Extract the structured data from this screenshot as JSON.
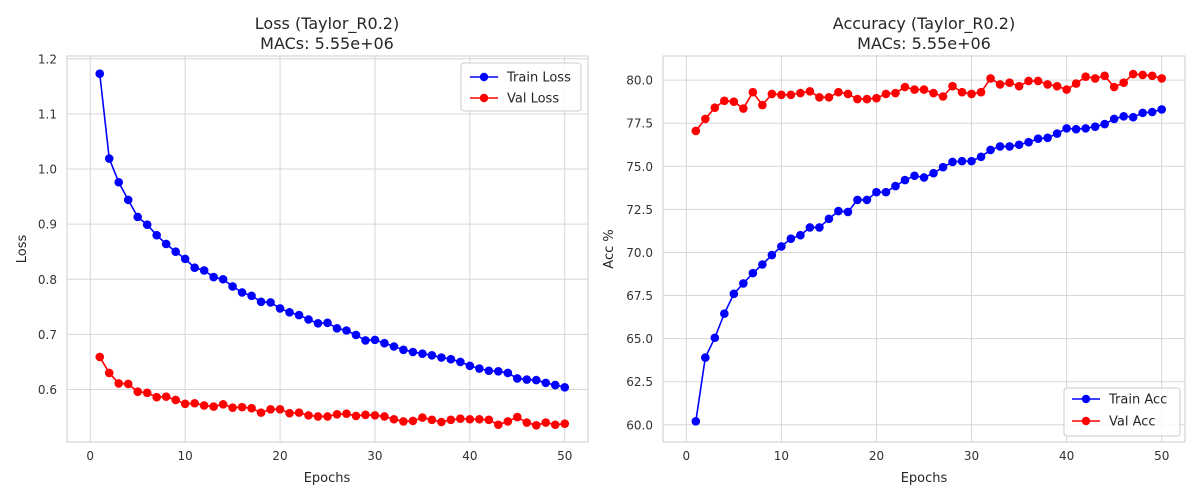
{
  "chart_data": [
    {
      "type": "line",
      "title": "Loss (Taylor_R0.2)",
      "subtitle": "MACs: 5.55e+06",
      "xlabel": "Epochs",
      "ylabel": "Loss",
      "xlim": [
        -2.45,
        52.45
      ],
      "ylim": [
        0.5047,
        1.2051
      ],
      "xticks": [
        0,
        10,
        20,
        30,
        40,
        50
      ],
      "xtick_labels": [
        "0",
        "10",
        "20",
        "30",
        "40",
        "50"
      ],
      "yticks": [
        0.6,
        0.7,
        0.8,
        0.9,
        1.0,
        1.1,
        1.2
      ],
      "ytick_labels": [
        "0.6",
        "0.7",
        "0.8",
        "0.9",
        "1.0",
        "1.1",
        "1.2"
      ],
      "grid": true,
      "legend": "upper right",
      "x": [
        1,
        2,
        3,
        4,
        5,
        6,
        7,
        8,
        9,
        10,
        11,
        12,
        13,
        14,
        15,
        16,
        17,
        18,
        19,
        20,
        21,
        22,
        23,
        24,
        25,
        26,
        27,
        28,
        29,
        30,
        31,
        32,
        33,
        34,
        35,
        36,
        37,
        38,
        39,
        40,
        41,
        42,
        43,
        44,
        45,
        46,
        47,
        48,
        49,
        50
      ],
      "series": [
        {
          "name": "Train Loss",
          "color": "#0000ff",
          "values": [
            1.173,
            1.019,
            0.976,
            0.944,
            0.913,
            0.899,
            0.88,
            0.864,
            0.85,
            0.837,
            0.821,
            0.816,
            0.804,
            0.8,
            0.787,
            0.776,
            0.77,
            0.759,
            0.758,
            0.747,
            0.74,
            0.735,
            0.727,
            0.72,
            0.721,
            0.711,
            0.707,
            0.699,
            0.689,
            0.69,
            0.684,
            0.678,
            0.672,
            0.668,
            0.665,
            0.662,
            0.658,
            0.655,
            0.65,
            0.643,
            0.638,
            0.634,
            0.633,
            0.63,
            0.62,
            0.618,
            0.617,
            0.612,
            0.608,
            0.604
          ]
        },
        {
          "name": "Val Loss",
          "color": "#ff0000",
          "values": [
            0.659,
            0.63,
            0.611,
            0.61,
            0.596,
            0.594,
            0.586,
            0.587,
            0.581,
            0.574,
            0.575,
            0.571,
            0.569,
            0.573,
            0.567,
            0.568,
            0.566,
            0.558,
            0.564,
            0.564,
            0.557,
            0.558,
            0.553,
            0.551,
            0.551,
            0.555,
            0.556,
            0.552,
            0.554,
            0.553,
            0.551,
            0.546,
            0.542,
            0.543,
            0.549,
            0.545,
            0.541,
            0.545,
            0.547,
            0.546,
            0.546,
            0.545,
            0.536,
            0.542,
            0.55,
            0.54,
            0.535,
            0.54,
            0.536,
            0.538
          ]
        }
      ]
    },
    {
      "type": "line",
      "title": "Accuracy (Taylor_R0.2)",
      "subtitle": "MACs: 5.55e+06",
      "xlabel": "Epochs",
      "ylabel": "Acc %",
      "xlim": [
        -2.45,
        52.45
      ],
      "ylim": [
        59.0,
        81.4
      ],
      "xticks": [
        0,
        10,
        20,
        30,
        40,
        50
      ],
      "xtick_labels": [
        "0",
        "10",
        "20",
        "30",
        "40",
        "50"
      ],
      "yticks": [
        60.0,
        62.5,
        65.0,
        67.5,
        70.0,
        72.5,
        75.0,
        77.5,
        80.0
      ],
      "ytick_labels": [
        "60.0",
        "62.5",
        "65.0",
        "67.5",
        "70.0",
        "72.5",
        "75.0",
        "77.5",
        "80.0"
      ],
      "grid": true,
      "legend": "lower right",
      "x": [
        1,
        2,
        3,
        4,
        5,
        6,
        7,
        8,
        9,
        10,
        11,
        12,
        13,
        14,
        15,
        16,
        17,
        18,
        19,
        20,
        21,
        22,
        23,
        24,
        25,
        26,
        27,
        28,
        29,
        30,
        31,
        32,
        33,
        34,
        35,
        36,
        37,
        38,
        39,
        40,
        41,
        42,
        43,
        44,
        45,
        46,
        47,
        48,
        49,
        50
      ],
      "series": [
        {
          "name": "Train Acc",
          "color": "#0000ff",
          "values": [
            60.2,
            63.9,
            65.05,
            66.45,
            67.6,
            68.2,
            68.8,
            69.3,
            69.85,
            70.35,
            70.8,
            71.0,
            71.45,
            71.45,
            71.95,
            72.4,
            72.35,
            73.05,
            73.05,
            73.5,
            73.5,
            73.85,
            74.2,
            74.45,
            74.35,
            74.6,
            74.95,
            75.25,
            75.3,
            75.3,
            75.55,
            75.95,
            76.15,
            76.15,
            76.25,
            76.4,
            76.6,
            76.65,
            76.9,
            77.2,
            77.15,
            77.2,
            77.3,
            77.45,
            77.75,
            77.9,
            77.85,
            78.1,
            78.15,
            78.3
          ]
        },
        {
          "name": "Val Acc",
          "color": "#ff0000",
          "values": [
            77.05,
            77.75,
            78.4,
            78.8,
            78.75,
            78.35,
            79.3,
            78.55,
            79.2,
            79.15,
            79.15,
            79.25,
            79.35,
            79.0,
            79.0,
            79.3,
            79.2,
            78.9,
            78.9,
            78.95,
            79.2,
            79.25,
            79.6,
            79.45,
            79.45,
            79.25,
            79.05,
            79.65,
            79.3,
            79.2,
            79.3,
            80.1,
            79.75,
            79.85,
            79.65,
            79.95,
            79.95,
            79.75,
            79.65,
            79.45,
            79.8,
            80.2,
            80.1,
            80.25,
            79.6,
            79.85,
            80.35,
            80.3,
            80.25,
            80.1
          ]
        }
      ]
    }
  ]
}
